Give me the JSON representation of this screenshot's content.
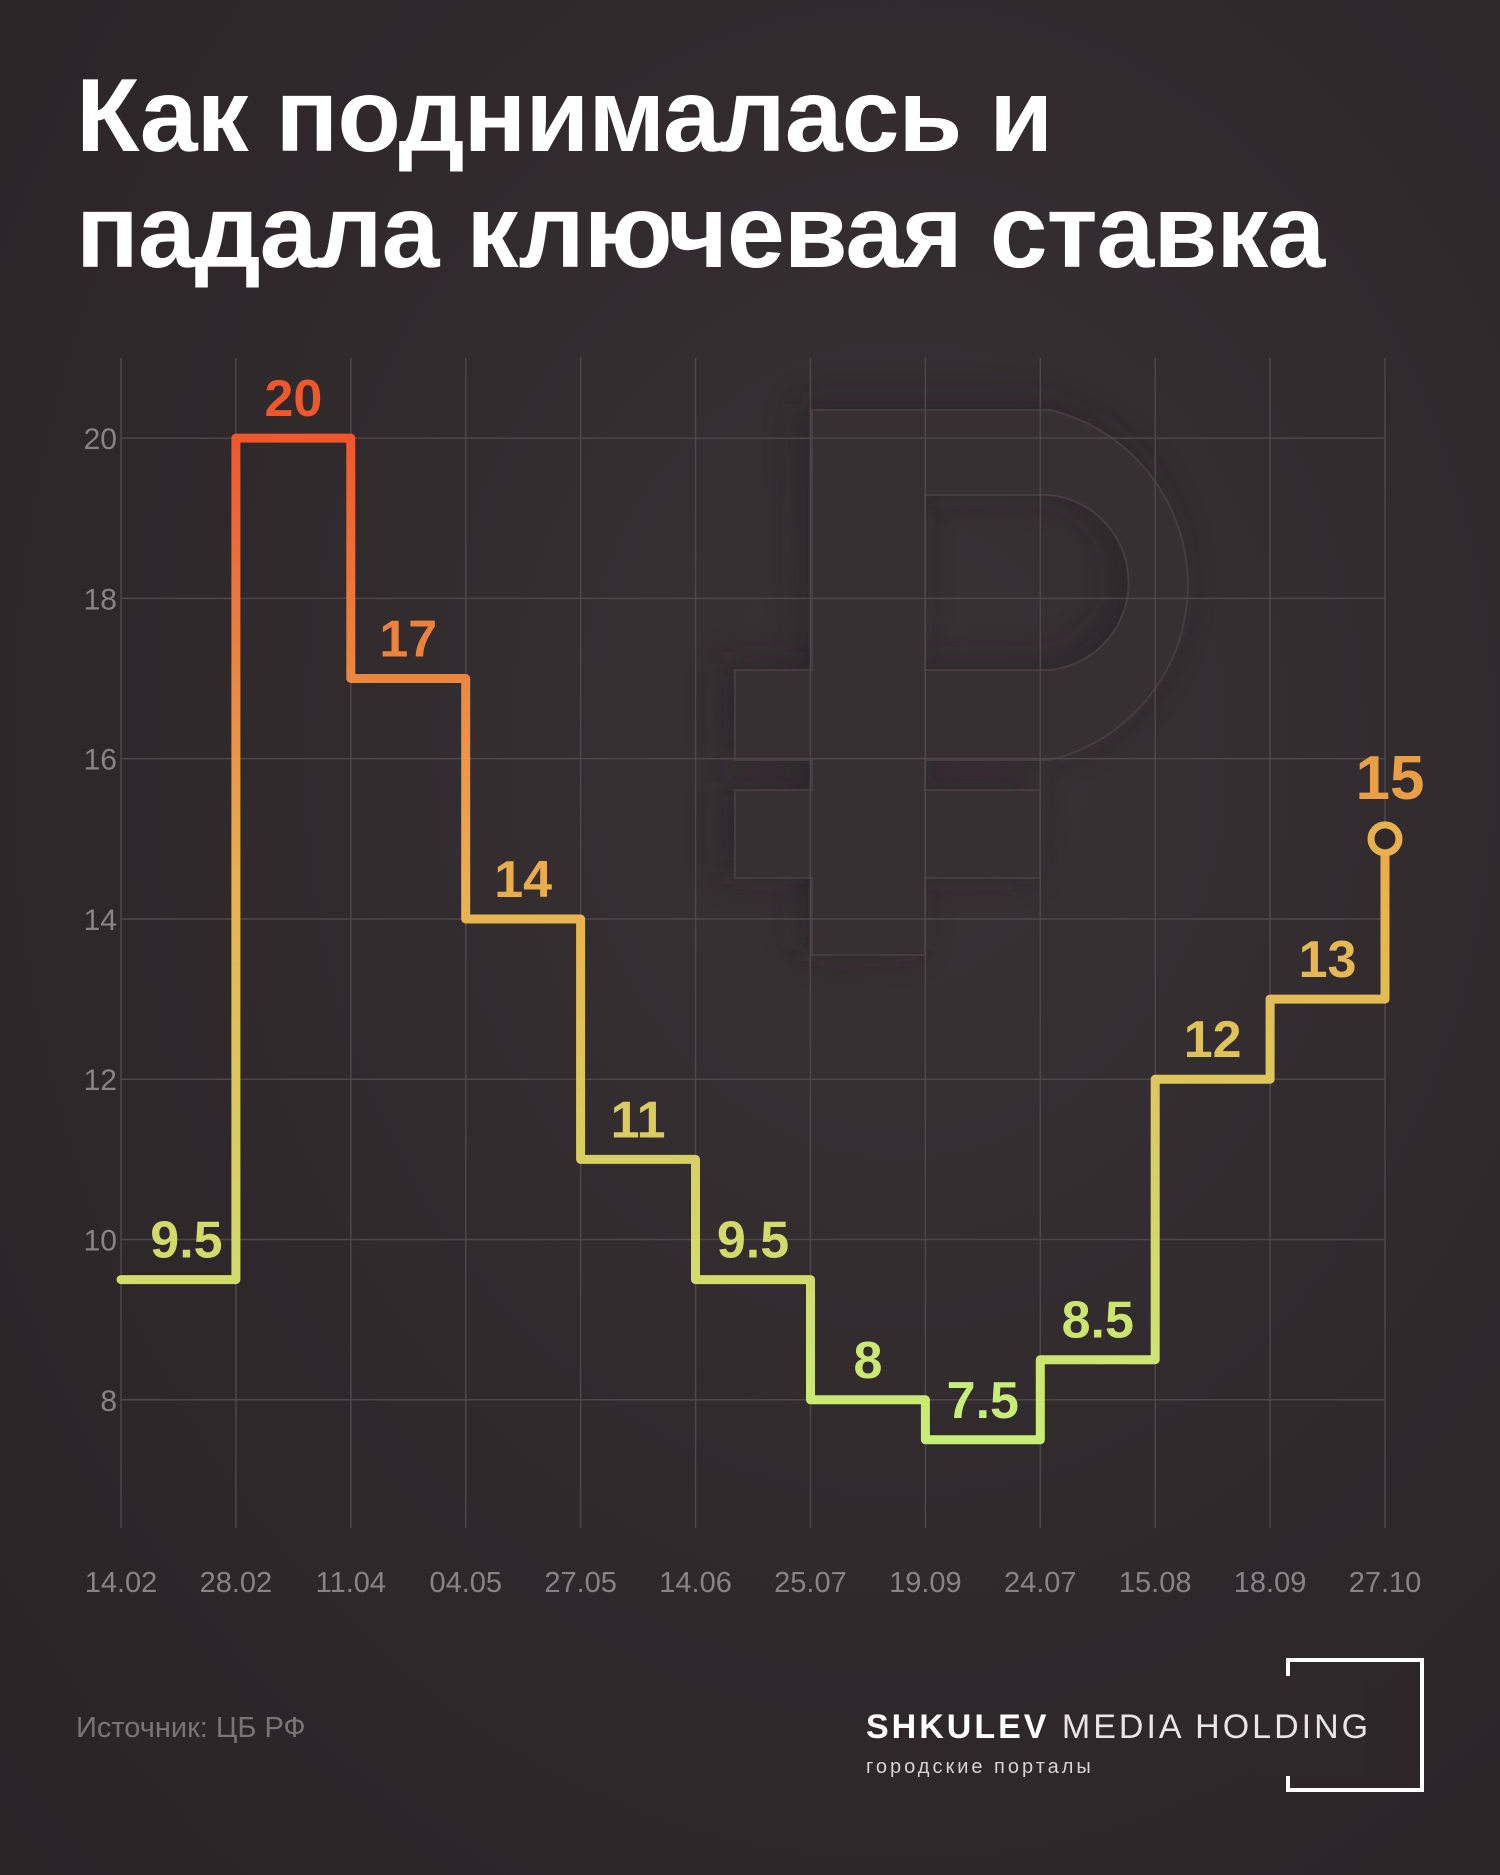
{
  "title": {
    "line1": "Как поднималась и",
    "line2": "падала ключевая ставка"
  },
  "source": "Источник: ЦБ РФ",
  "logo": {
    "brand_bold": "SHKULEV",
    "brand_light": "MEDIA HOLDING",
    "tagline": "городские порталы"
  },
  "colors": {
    "background": "#2f292c",
    "high": "#f0572d",
    "mid": "#e9b14e",
    "low": "#c7ee76",
    "grid": "#4e4649",
    "ticks": "#8a8386"
  },
  "chart_data": {
    "type": "line",
    "step": true,
    "x": [
      "14.02",
      "28.02",
      "11.04",
      "04.05",
      "27.05",
      "14.06",
      "25.07",
      "19.09",
      "24.07",
      "15.08",
      "18.09",
      "27.10"
    ],
    "values": [
      9.5,
      20,
      17,
      14,
      11,
      9.5,
      8,
      7.5,
      8.5,
      12,
      13,
      15
    ],
    "data_labels": [
      "9.5",
      "20",
      "17",
      "14",
      "11",
      "9.5",
      "8",
      "7.5",
      "8.5",
      "12",
      "13",
      "15"
    ],
    "yticks": [
      8,
      10,
      12,
      14,
      16,
      18,
      20
    ],
    "ylim": [
      6.4,
      21
    ],
    "grid": true,
    "end_marker": true,
    "background_icon": "ruble-sign-icon"
  }
}
